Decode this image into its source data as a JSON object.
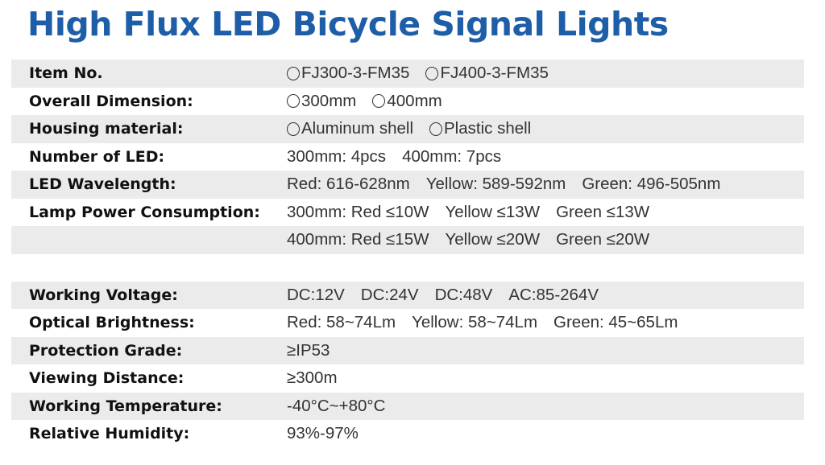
{
  "title": "High Flux LED Bicycle Signal Lights",
  "rows": [
    {
      "label": "Item No.",
      "options": [
        "FJ300-3-FM35",
        "FJ400-3-FM35"
      ]
    },
    {
      "label": "Overall Dimension:",
      "options": [
        "300mm",
        "400mm"
      ]
    },
    {
      "label": "Housing material:",
      "options": [
        "Aluminum shell",
        "Plastic shell"
      ]
    },
    {
      "label": "Number of LED:",
      "values": [
        "300mm: 4pcs",
        "400mm: 7pcs"
      ]
    },
    {
      "label": "LED Wavelength:",
      "values": [
        "Red: 616-628nm",
        "Yellow: 589-592nm",
        "Green: 496-505nm"
      ]
    },
    {
      "label": "Lamp Power Consumption:",
      "values": [
        "300mm: Red ≤10W",
        "Yellow ≤13W",
        "Green ≤13W"
      ]
    },
    {
      "label": "",
      "values": [
        "400mm: Red ≤15W",
        "Yellow ≤20W",
        "Green ≤20W"
      ]
    },
    {
      "label": "Working Voltage:",
      "values": [
        "DC:12V",
        "DC:24V",
        "DC:48V",
        "AC:85-264V"
      ]
    },
    {
      "label": "Optical Brightness:",
      "values": [
        "Red: 58~74Lm",
        "Yellow: 58~74Lm",
        "Green: 45~65Lm"
      ]
    },
    {
      "label": "Protection Grade:",
      "values": [
        "≥IP53"
      ]
    },
    {
      "label": "Viewing Distance:",
      "values": [
        "≥300m"
      ]
    },
    {
      "label": "Working Temperature:",
      "values": [
        "-40°C~+80°C"
      ]
    },
    {
      "label": "Relative Humidity:",
      "values": [
        "93%-97%"
      ]
    }
  ],
  "colors": {
    "title": "#1e5ea8",
    "row_shade": "#ebebeb",
    "label": "#111111",
    "value": "#333333"
  },
  "icons": {
    "option_marker": "radio-circle-icon"
  }
}
